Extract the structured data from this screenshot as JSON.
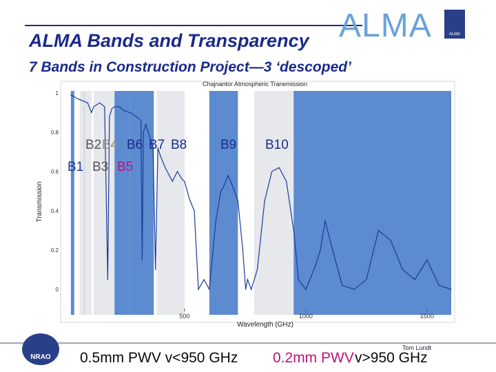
{
  "slide": {
    "title": "ALMA Bands and Transparency",
    "logo_word": "ALMA",
    "logo_caption": "ALMA",
    "subtitle": "7 Bands in Construction Project—3 ‘descoped’",
    "nrao_label": "NRAO",
    "pwv_low": "0.5mm PWV v<950 GHz",
    "pwv_high_label": "0.2mm PWV",
    "pwv_high_range": "v>950 GHz",
    "author": "Tom Lundt",
    "colors": {
      "title": "#1a2a8a",
      "logo": "#6aa2d8",
      "pink": "#c0107a",
      "band_blue": "#3f77c8",
      "band_gray": "#b8bec8"
    }
  },
  "chart_data": {
    "type": "line",
    "title": "Chajnantor Atmospheric Tranemission",
    "xlabel": "Wavelength (GHz)",
    "ylabel": "Transmission",
    "xlim": [
      0,
      1600
    ],
    "ylim": [
      0,
      1
    ],
    "x_ticks": [
      "500",
      "1000",
      "1500"
    ],
    "y_ticks": [
      "0",
      "0.2",
      "0.4",
      "0.6",
      "0.8",
      "1"
    ],
    "y_tick_values": [
      0,
      0.2,
      0.4,
      0.6,
      0.8,
      1
    ],
    "x_tick_values": [
      500,
      1000,
      1500
    ],
    "series": [
      {
        "name": "",
        "x": [
          31,
          60,
          80,
          100,
          116,
          125,
          150,
          170,
          183,
          190,
          200,
          211,
          230,
          250,
          275,
          300,
          320,
          325,
          330,
          340,
          350,
          370,
          380,
          390,
          400,
          420,
          450,
          470,
          490,
          500,
          520,
          540,
          557,
          580,
          602,
          630,
          650,
          660,
          680,
          700,
          720,
          740,
          752,
          760,
          775,
          800,
          830,
          860,
          890,
          920,
          950,
          970,
          1000,
          1040,
          1060,
          1080,
          1100,
          1150,
          1200,
          1250,
          1300,
          1350,
          1400,
          1450,
          1500,
          1550,
          1600
        ],
        "y": [
          0.99,
          0.97,
          0.96,
          0.95,
          0.9,
          0.93,
          0.95,
          0.93,
          0.05,
          0.88,
          0.92,
          0.93,
          0.93,
          0.91,
          0.9,
          0.88,
          0.86,
          0.15,
          0.8,
          0.84,
          0.8,
          0.72,
          0.1,
          0.72,
          0.68,
          0.62,
          0.55,
          0.6,
          0.56,
          0.55,
          0.46,
          0.4,
          0.0,
          0.05,
          0.0,
          0.36,
          0.5,
          0.52,
          0.58,
          0.52,
          0.45,
          0.2,
          0.0,
          0.05,
          0.0,
          0.1,
          0.45,
          0.6,
          0.62,
          0.55,
          0.3,
          0.05,
          0.0,
          0.12,
          0.2,
          0.35,
          0.25,
          0.02,
          0.0,
          0.05,
          0.3,
          0.25,
          0.1,
          0.05,
          0.15,
          0.02,
          0.0
        ]
      }
    ],
    "bands": [
      {
        "name": "B1",
        "range": [
          31,
          45
        ]
      },
      {
        "name": "B2",
        "range": [
          67,
          90
        ]
      },
      {
        "name": "B3",
        "range": [
          84,
          116
        ]
      },
      {
        "name": "B4",
        "range": [
          125,
          163
        ]
      },
      {
        "name": "B5",
        "range": [
          163,
          211
        ]
      },
      {
        "name": "B6",
        "range": [
          211,
          275
        ]
      },
      {
        "name": "B7",
        "range": [
          275,
          373
        ]
      },
      {
        "name": "B8",
        "range": [
          385,
          500
        ]
      },
      {
        "name": "B9",
        "range": [
          602,
          720
        ]
      },
      {
        "name": "B10",
        "range": [
          787,
          950
        ]
      },
      {
        "name": "",
        "range": [
          950,
          1600
        ]
      }
    ],
    "band_labels": [
      "B1",
      "B2",
      "B3",
      "B4",
      "B5",
      "B6",
      "B7",
      "B8",
      "B9",
      "B10"
    ],
    "grid": false,
    "legend": "none"
  }
}
